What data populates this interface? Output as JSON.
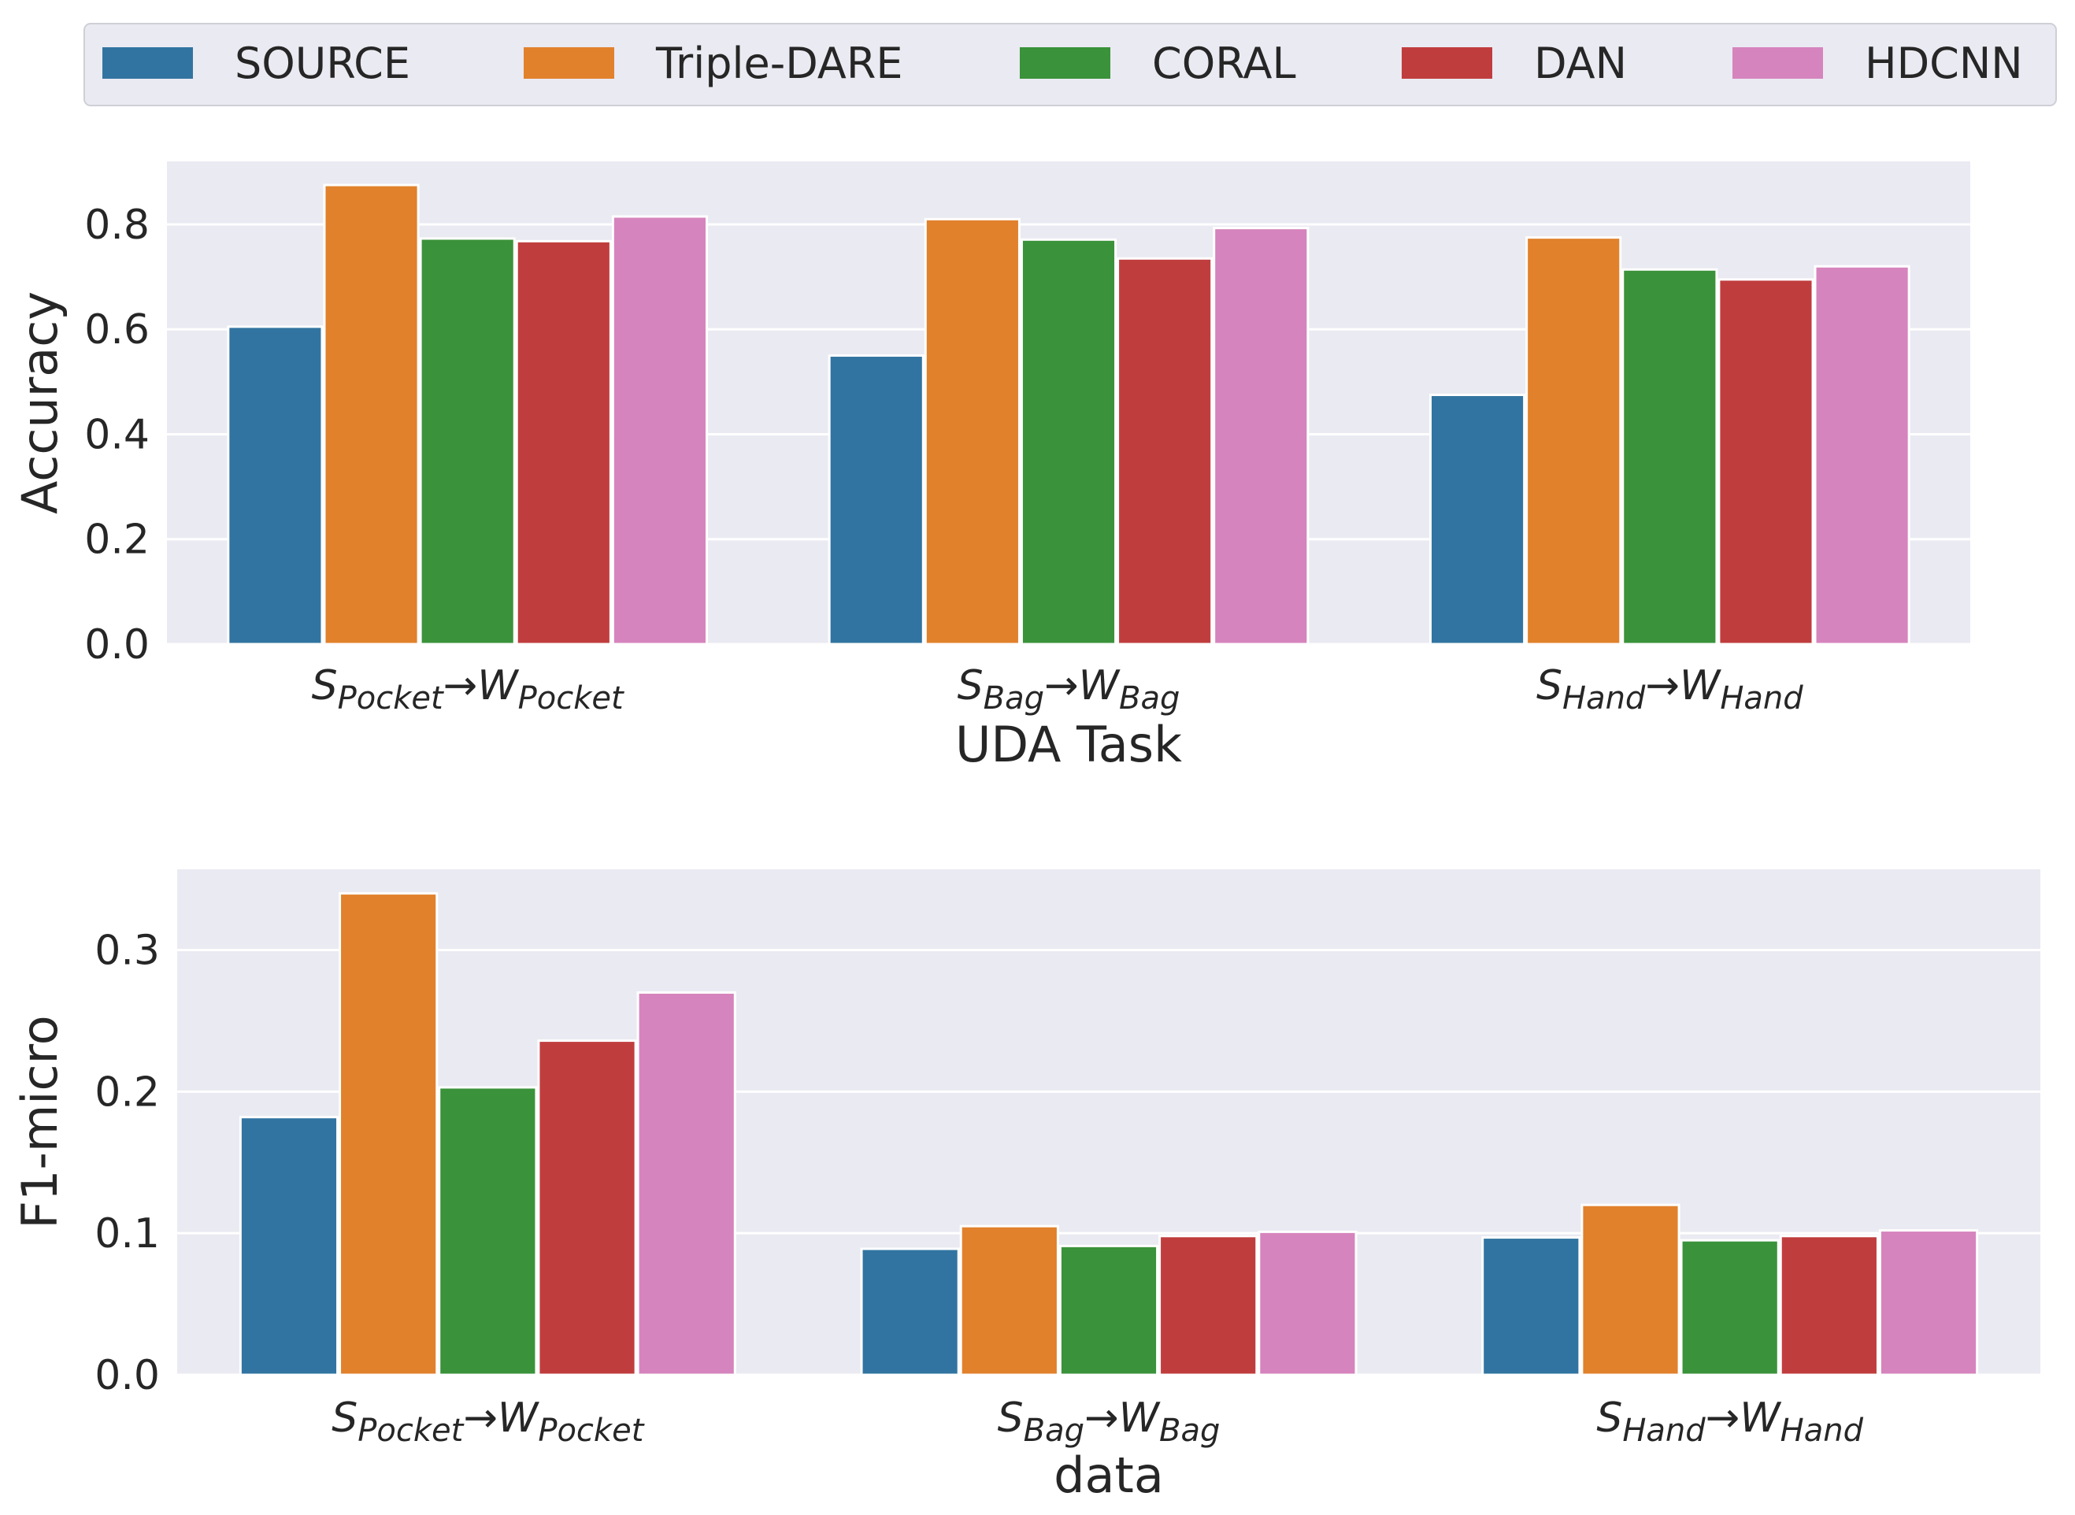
{
  "colors": {
    "SOURCE": "#3274a1",
    "Triple-DARE": "#e1812c",
    "CORAL": "#3a923a",
    "DAN": "#c03d3e",
    "HDCNN": "#d684bd",
    "panel_bg": "#eaeaf2",
    "grid": "#ffffff",
    "text": "#262626"
  },
  "legend": {
    "entries": [
      "SOURCE",
      "Triple-DARE",
      "CORAL",
      "DAN",
      "HDCNN"
    ],
    "placement": "top"
  },
  "chart_data": [
    {
      "type": "bar",
      "title": "",
      "xlabel": "UDA Task",
      "ylabel": "Accuracy",
      "ylim": [
        0,
        0.92
      ],
      "yticks": [
        0.0,
        0.2,
        0.4,
        0.6,
        0.8
      ],
      "ytick_labels": [
        "0.0",
        "0.2",
        "0.4",
        "0.6",
        "0.8"
      ],
      "grid": true,
      "categories": [
        {
          "s": "S",
          "s_sub": "Pocket",
          "arrow": "→",
          "t": "W",
          "t_sub": "Pocket"
        },
        {
          "s": "S",
          "s_sub": "Bag",
          "arrow": "→",
          "t": "W",
          "t_sub": "Bag"
        },
        {
          "s": "S",
          "s_sub": "Hand",
          "arrow": "→",
          "t": "W",
          "t_sub": "Hand"
        }
      ],
      "series": [
        {
          "name": "SOURCE",
          "values": [
            0.605,
            0.55,
            0.475
          ]
        },
        {
          "name": "Triple-DARE",
          "values": [
            0.875,
            0.81,
            0.775
          ]
        },
        {
          "name": "CORAL",
          "values": [
            0.773,
            0.771,
            0.714
          ]
        },
        {
          "name": "DAN",
          "values": [
            0.768,
            0.735,
            0.695
          ]
        },
        {
          "name": "HDCNN",
          "values": [
            0.815,
            0.793,
            0.72
          ]
        }
      ]
    },
    {
      "type": "bar",
      "title": "",
      "xlabel": "data",
      "ylabel": "F1-micro",
      "ylim": [
        0,
        0.357
      ],
      "yticks": [
        0.0,
        0.1,
        0.2,
        0.3
      ],
      "ytick_labels": [
        "0.0",
        "0.1",
        "0.2",
        "0.3"
      ],
      "grid": true,
      "categories": [
        {
          "s": "S",
          "s_sub": "Pocket",
          "arrow": "→",
          "t": "W",
          "t_sub": "Pocket"
        },
        {
          "s": "S",
          "s_sub": "Bag",
          "arrow": "→",
          "t": "W",
          "t_sub": "Bag"
        },
        {
          "s": "S",
          "s_sub": "Hand",
          "arrow": "→",
          "t": "W",
          "t_sub": "Hand"
        }
      ],
      "series": [
        {
          "name": "SOURCE",
          "values": [
            0.182,
            0.089,
            0.097
          ]
        },
        {
          "name": "Triple-DARE",
          "values": [
            0.34,
            0.105,
            0.12
          ]
        },
        {
          "name": "CORAL",
          "values": [
            0.203,
            0.091,
            0.095
          ]
        },
        {
          "name": "DAN",
          "values": [
            0.236,
            0.098,
            0.098
          ]
        },
        {
          "name": "HDCNN",
          "values": [
            0.27,
            0.101,
            0.102
          ]
        }
      ]
    }
  ]
}
